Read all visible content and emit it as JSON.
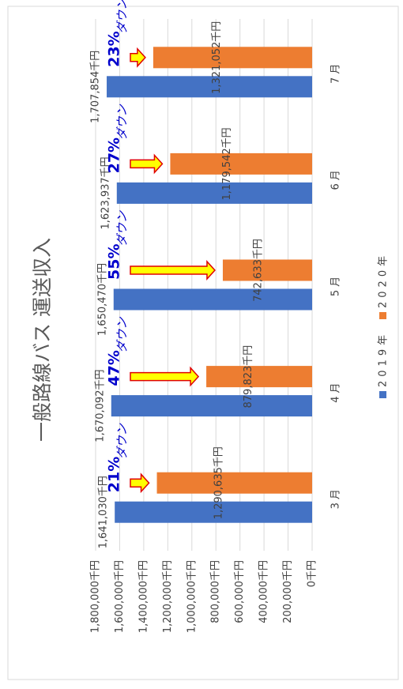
{
  "chart_data": {
    "type": "bar",
    "title": "一般路線バス 運送収入",
    "categories": [
      "3月",
      "4月",
      "5月",
      "6月",
      "7月"
    ],
    "series": [
      {
        "name": "2019年",
        "color": "#4472c4",
        "values": [
          1641030,
          1670092,
          1650470,
          1623937,
          1707854
        ],
        "value_labels": [
          "1,641,030千円",
          "1,670,092千円",
          "1,650,470千円",
          "1,623,937千円",
          "1,707,854千円"
        ]
      },
      {
        "name": "2020年",
        "color": "#ed7d31",
        "values": [
          1290635,
          879823,
          742633,
          1179542,
          1321052
        ],
        "value_labels": [
          "1,290,635千円",
          "879,823千円",
          "742,633千円",
          "1,179,542千円",
          "1,321,052千円"
        ]
      }
    ],
    "annotations": [
      {
        "label": "21%",
        "text": "ダウン"
      },
      {
        "label": "47%",
        "text": "ダウン"
      },
      {
        "label": "55%",
        "text": "ダウン"
      },
      {
        "label": "27%",
        "text": "ダウン"
      },
      {
        "label": "23%",
        "text": "ダウン"
      }
    ],
    "ylim": [
      0,
      1800000
    ],
    "yticks": [
      {
        "value": 0,
        "label": "0千円"
      },
      {
        "value": 200000,
        "label": "200,000千円"
      },
      {
        "value": 400000,
        "label": "400,000千円"
      },
      {
        "value": 600000,
        "label": "600,000千円"
      },
      {
        "value": 800000,
        "label": "800,000千円"
      },
      {
        "value": 1000000,
        "label": "1,000,000千円"
      },
      {
        "value": 1200000,
        "label": "1,200,000千円"
      },
      {
        "value": 1400000,
        "label": "1,400,000千円"
      },
      {
        "value": 1600000,
        "label": "1,600,000千円"
      },
      {
        "value": 1800000,
        "label": "1,800,000千円"
      }
    ],
    "grid": true,
    "legend": "bottom"
  }
}
